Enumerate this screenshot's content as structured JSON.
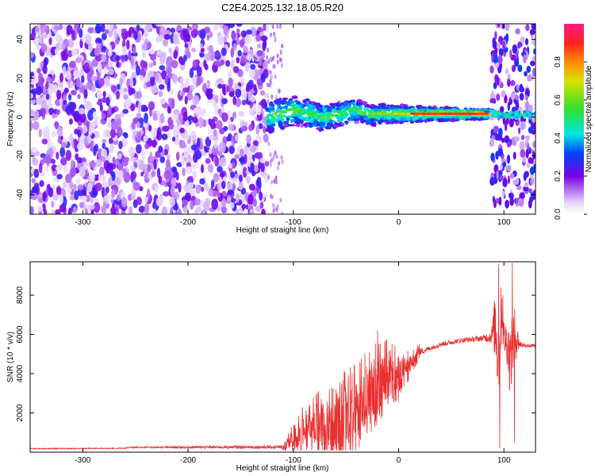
{
  "figure_title": "C2E4.2025.132.18.05.R20",
  "colors": {
    "snr_line": "#e83030",
    "frame": "#000000",
    "colormap_low": "#ffffff",
    "colormap_purple": "#7a00e6",
    "colormap_cyan": "#00e6e6",
    "colormap_green": "#30e030",
    "colormap_red": "#ff2020",
    "colormap_top": "#ff1a8c"
  },
  "chart_data": [
    {
      "type": "heatmap",
      "xlabel": "Height of straight line (km)",
      "ylabel": "Frequency (Hz)",
      "xlim": [
        -350,
        130
      ],
      "ylim": [
        -50,
        48
      ],
      "x_ticks": [
        "-300",
        "-200",
        "-100",
        "0",
        "100"
      ],
      "y_ticks": [
        "-40",
        "-20",
        "0",
        "20",
        "40"
      ],
      "colorbar": {
        "label": "Normalized spectral amplitude",
        "range": [
          0,
          1
        ],
        "ticks": [
          "0.0",
          "0.2",
          "0.4",
          "0.6",
          "0.8"
        ]
      },
      "regions": [
        {
          "x_range": [
            -350,
            -125
          ],
          "description_level": 0.25,
          "pattern": "broadband noise"
        },
        {
          "x_range": [
            -125,
            90
          ],
          "center_freq": 1.5,
          "bandwidth": 5,
          "peak_level": 0.85
        },
        {
          "x_range": [
            88,
            130
          ],
          "pattern": "broadband noise with line near 0 Hz",
          "description_level": 0.4
        }
      ]
    },
    {
      "type": "line",
      "xlabel": "Height of straight line (km)",
      "ylabel": "SNR (10 * v/v)",
      "xlim": [
        -350,
        130
      ],
      "ylim": [
        0,
        9700
      ],
      "x_ticks": [
        "-300",
        "-200",
        "-100",
        "0",
        "100"
      ],
      "y_ticks": [
        "2000",
        "4000",
        "6000",
        "8000"
      ],
      "series": [
        {
          "color": "#e83030",
          "envelope_x": [
            -350,
            -260,
            -255,
            -110,
            -100,
            -90,
            -70,
            -55,
            -40,
            -30,
            -20,
            -15,
            -10,
            0,
            10,
            20,
            30,
            40,
            60,
            80,
            88,
            92,
            95,
            98,
            100,
            103,
            106,
            110,
            115,
            120,
            130
          ],
          "envelope_y": [
            180,
            200,
            250,
            260,
            700,
            1000,
            1300,
            1500,
            2000,
            2800,
            3300,
            3700,
            3900,
            3800,
            4400,
            5100,
            5300,
            5500,
            5700,
            5800,
            5900,
            6500,
            4500,
            7500,
            5800,
            5600,
            4600,
            6000,
            5500,
            5450,
            5400
          ],
          "noise_amplitude": [
            40,
            40,
            60,
            150,
            600,
            900,
            1400,
            1600,
            1600,
            1500,
            1500,
            1300,
            1200,
            900,
            500,
            300,
            200,
            200,
            200,
            250,
            600,
            3000,
            4000,
            2500,
            1500,
            2000,
            3000,
            2500,
            300,
            200,
            200
          ],
          "spikes": [
            {
              "x": -20,
              "y": 6200
            },
            {
              "x": -8,
              "y": 5200
            },
            {
              "x": 95,
              "y": 9600
            },
            {
              "x": 99,
              "y": 8000
            },
            {
              "x": 96,
              "y": 200
            },
            {
              "x": 108,
              "y": 9650
            },
            {
              "x": 110,
              "y": 500
            }
          ]
        }
      ]
    }
  ]
}
